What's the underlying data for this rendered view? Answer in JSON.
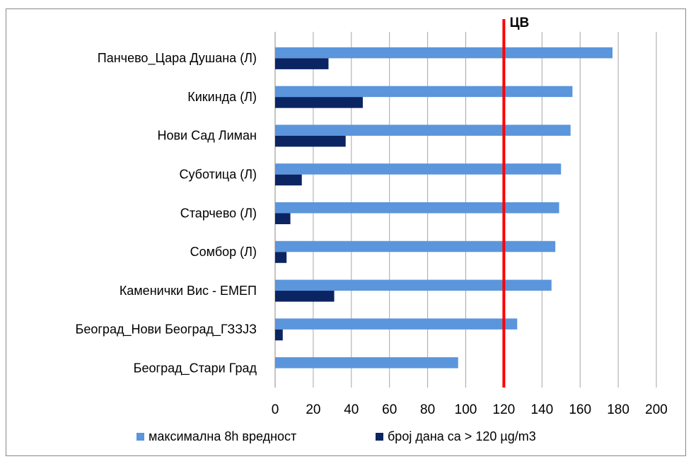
{
  "chart_data": {
    "type": "hbar",
    "categories": [
      "Панчево_Цара Душана (Л)",
      "Кикинда (Л)",
      "Нови Сад Лиман",
      "Суботица  (Л)",
      "Старчево (Л)",
      "Сомбор (Л)",
      "Каменички Вис - ЕМЕП",
      "Београд_Нови Београд_ГЗЗЈЗ",
      "Београд_Стари Град"
    ],
    "series": [
      {
        "name": "максимална 8h вредност",
        "color": "#5b95dc",
        "values": [
          177,
          156,
          155,
          150,
          149,
          147,
          145,
          127,
          96
        ]
      },
      {
        "name": "број дана са  > 120 µg/m3",
        "color": "#0b2462",
        "values": [
          28,
          46,
          37,
          14,
          8,
          6,
          31,
          4,
          0
        ]
      }
    ],
    "xlim": [
      0,
      200
    ],
    "xticks": [
      0,
      20,
      40,
      60,
      80,
      100,
      120,
      140,
      160,
      180,
      200
    ],
    "grid": true,
    "reference_line": {
      "value": 120,
      "label": "ЦВ",
      "color": "#ff0000"
    },
    "legend": "bottom"
  }
}
